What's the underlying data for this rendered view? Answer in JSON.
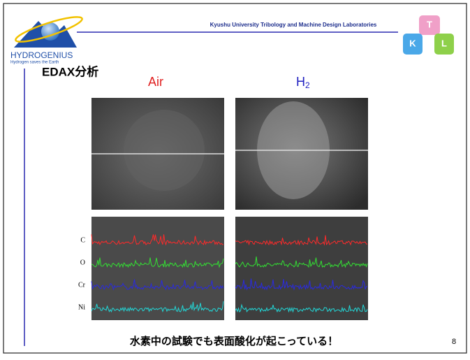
{
  "header": {
    "lab": "Kyushu University Tribology and Machine Design Laboratories",
    "logo_name": "HYDROGENIUS",
    "logo_tagline": "Hydrogen saves the Earth",
    "cube_letters": [
      "K",
      "T",
      "L"
    ]
  },
  "slide": {
    "title": "EDAX分析",
    "labels": {
      "air": "Air",
      "h2": {
        "base": "H",
        "sub": "2"
      }
    },
    "elements": [
      "C",
      "O",
      "Cr",
      "Ni"
    ],
    "caption": "水素中の試験でも表面酸化が起こっている！",
    "page_number": "8"
  }
}
